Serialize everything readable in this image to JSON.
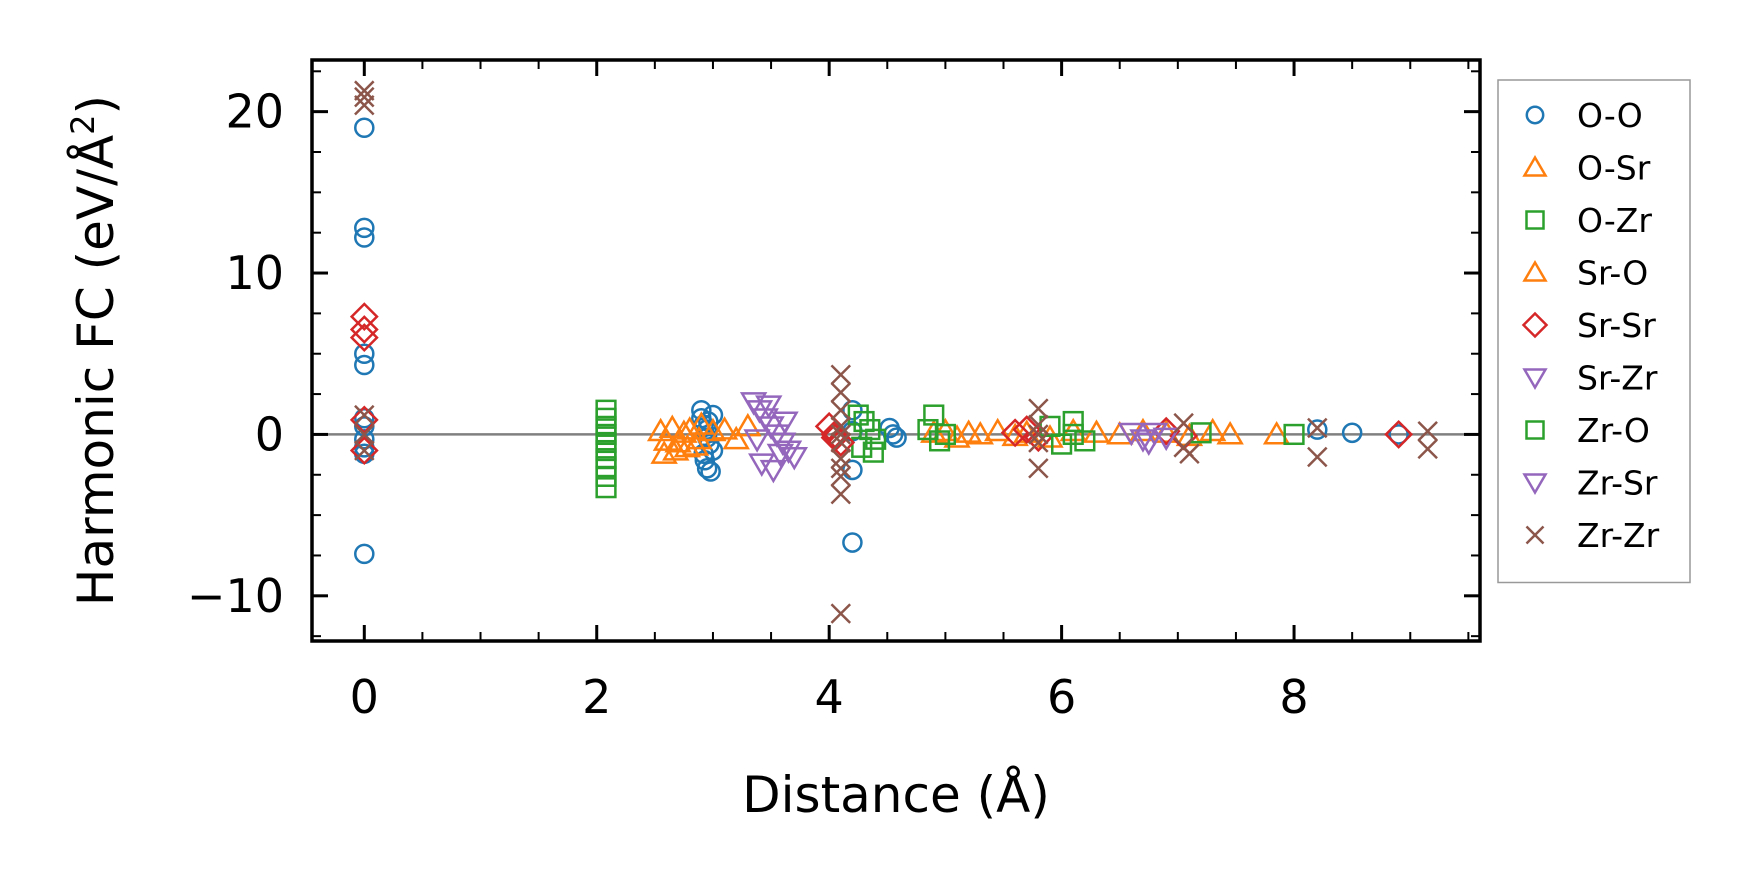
{
  "chart_data": {
    "type": "scatter",
    "title": "",
    "xlabel": "Distance (Å)",
    "ylabel": "Harmonic FC (eV/Å²)",
    "ylabel_parts": {
      "main": "Harmonic FC (eV/Å",
      "sup": "2",
      "close": ")"
    },
    "xlim": [
      -0.45,
      9.6
    ],
    "ylim": [
      -12.8,
      23.2
    ],
    "xticks": [
      0,
      2,
      4,
      6,
      8
    ],
    "xtick_labels": [
      "0",
      "2",
      "4",
      "6",
      "8"
    ],
    "yticks": [
      -10,
      0,
      10,
      20
    ],
    "ytick_labels": [
      "−10",
      "0",
      "10",
      "20"
    ],
    "zero_line": true,
    "grid": false,
    "legend_position": "outside-right",
    "colors": {
      "O-O": "#1f77b4",
      "O-Sr": "#ff7f0e",
      "O-Zr": "#2ca02c",
      "Sr-O": "#ff7f0e",
      "Sr-Sr": "#d62728",
      "Sr-Zr": "#9467bd",
      "Zr-O": "#2ca02c",
      "Zr-Sr": "#9467bd",
      "Zr-Zr": "#8c564b",
      "zero_line": "#808080"
    },
    "series": [
      {
        "name": "O-O",
        "marker": "circle",
        "color": "#1f77b4",
        "x": [
          0,
          0,
          0,
          0,
          0,
          0,
          0,
          0,
          0,
          0,
          0,
          2.9,
          2.9,
          2.92,
          2.95,
          2.95,
          2.97,
          3.0,
          2.93,
          2.95,
          2.98,
          3.0,
          2.92,
          2.96,
          4.2,
          4.2,
          4.2,
          4.2,
          4.52,
          4.55,
          4.58,
          8.2,
          8.5,
          8.9
        ],
        "y": [
          19.0,
          12.8,
          12.2,
          5.0,
          4.3,
          1.0,
          0.5,
          -0.3,
          -0.8,
          -1.2,
          -7.4,
          1.5,
          1.0,
          0.6,
          0.3,
          -0.2,
          -0.6,
          -1.0,
          -1.6,
          -2.1,
          -2.3,
          1.2,
          -1.2,
          0.8,
          1.5,
          0.2,
          -2.2,
          -6.7,
          0.4,
          0.0,
          -0.2,
          0.3,
          0.1,
          0.0
        ]
      },
      {
        "name": "O-Sr",
        "marker": "triangle-up",
        "color": "#ff7f0e",
        "x": [
          2.55,
          2.6,
          2.65,
          2.7,
          2.75,
          2.8,
          2.85,
          2.9,
          3.0,
          3.1,
          3.2,
          3.3,
          2.58,
          2.68,
          2.78,
          2.88,
          4.9,
          5.0,
          5.1,
          5.2,
          5.3,
          5.45,
          5.6
        ],
        "y": [
          0.2,
          -0.4,
          0.4,
          -0.5,
          0.1,
          0.3,
          -0.7,
          0.6,
          0.2,
          0.3,
          -0.3,
          0.5,
          -1.2,
          -1.0,
          -0.8,
          -0.3,
          0.1,
          0.2,
          -0.2,
          0.1,
          0.0,
          0.2,
          -0.1
        ]
      },
      {
        "name": "O-Zr",
        "marker": "square",
        "color": "#2ca02c",
        "x": [
          2.08,
          2.08,
          2.08,
          2.08,
          2.08,
          2.08,
          2.08,
          2.08,
          2.08,
          2.08,
          4.25,
          4.3,
          4.35,
          4.4,
          4.28,
          4.38,
          4.9,
          4.85,
          4.95,
          5.0
        ],
        "y": [
          1.5,
          1.0,
          0.5,
          0.0,
          -0.5,
          -1.0,
          -1.5,
          -2.0,
          -2.6,
          -3.3,
          1.2,
          0.8,
          0.3,
          -0.3,
          -0.8,
          -1.1,
          1.2,
          0.3,
          -0.4,
          0.0
        ]
      },
      {
        "name": "Sr-O",
        "marker": "triangle-up",
        "color": "#ff7f0e",
        "x": [
          5.7,
          5.9,
          6.1,
          6.3,
          6.5,
          6.7,
          6.9,
          7.1,
          7.3,
          7.45,
          7.85
        ],
        "y": [
          0.1,
          -0.2,
          0.2,
          0.1,
          0.0,
          0.2,
          0.1,
          -0.1,
          0.2,
          0.0,
          0.0
        ]
      },
      {
        "name": "Sr-Sr",
        "marker": "diamond",
        "color": "#d62728",
        "x": [
          0,
          0,
          0,
          0,
          0,
          4.0,
          4.05,
          4.1,
          4.05,
          5.6,
          5.7,
          5.8,
          6.9,
          7.05,
          8.9
        ],
        "y": [
          7.3,
          6.5,
          6.0,
          0.9,
          -1.0,
          0.5,
          0.0,
          -0.5,
          -0.2,
          0.1,
          0.3,
          -0.2,
          0.2,
          -0.1,
          0.0
        ]
      },
      {
        "name": "Sr-Zr",
        "marker": "triangle-down",
        "color": "#9467bd",
        "x": [
          3.35,
          3.4,
          3.45,
          3.5,
          3.55,
          3.6,
          3.65,
          3.7,
          3.42,
          3.52,
          3.62,
          3.38,
          3.48,
          3.58
        ],
        "y": [
          2.0,
          1.5,
          1.0,
          0.5,
          0.0,
          -0.5,
          -1.0,
          -1.4,
          -1.8,
          -2.2,
          0.8,
          -0.3,
          1.8,
          -1.2
        ]
      },
      {
        "name": "Zr-O",
        "marker": "square",
        "color": "#2ca02c",
        "x": [
          5.9,
          6.0,
          6.1,
          6.2,
          6.1,
          7.2,
          8.0
        ],
        "y": [
          0.5,
          -0.6,
          0.8,
          -0.4,
          0.0,
          0.1,
          0.0
        ]
      },
      {
        "name": "Zr-Sr",
        "marker": "triangle-down",
        "color": "#9467bd",
        "x": [
          6.6,
          6.7,
          6.8,
          6.9,
          6.75
        ],
        "y": [
          0.1,
          -0.3,
          0.1,
          -0.2,
          -0.5
        ]
      },
      {
        "name": "Zr-Zr",
        "marker": "x",
        "color": "#8c564b",
        "x": [
          0,
          0,
          0,
          0,
          0,
          0,
          4.1,
          4.1,
          4.1,
          4.1,
          4.1,
          4.1,
          4.1,
          4.1,
          4.1,
          4.1,
          4.1,
          5.8,
          5.8,
          5.8,
          5.8,
          5.8,
          7.05,
          7.05,
          7.1,
          8.2,
          8.2,
          9.15,
          9.15
        ],
        "y": [
          21.3,
          20.9,
          20.4,
          1.2,
          0.0,
          -1.0,
          3.7,
          2.6,
          1.5,
          0.5,
          -0.5,
          -1.5,
          -2.1,
          -2.6,
          -3.7,
          -11.1,
          0.0,
          1.6,
          0.6,
          -0.5,
          -2.1,
          0.0,
          0.7,
          -0.8,
          -1.2,
          0.4,
          -1.4,
          0.2,
          -0.9
        ]
      }
    ],
    "legend": [
      {
        "label": "O-O",
        "marker": "circle",
        "color": "#1f77b4"
      },
      {
        "label": "O-Sr",
        "marker": "triangle-up",
        "color": "#ff7f0e"
      },
      {
        "label": "O-Zr",
        "marker": "square",
        "color": "#2ca02c"
      },
      {
        "label": "Sr-O",
        "marker": "triangle-up",
        "color": "#ff7f0e"
      },
      {
        "label": "Sr-Sr",
        "marker": "diamond",
        "color": "#d62728"
      },
      {
        "label": "Sr-Zr",
        "marker": "triangle-down",
        "color": "#9467bd"
      },
      {
        "label": "Zr-O",
        "marker": "square",
        "color": "#2ca02c"
      },
      {
        "label": "Zr-Sr",
        "marker": "triangle-down",
        "color": "#9467bd"
      },
      {
        "label": "Zr-Zr",
        "marker": "x",
        "color": "#8c564b"
      }
    ]
  }
}
